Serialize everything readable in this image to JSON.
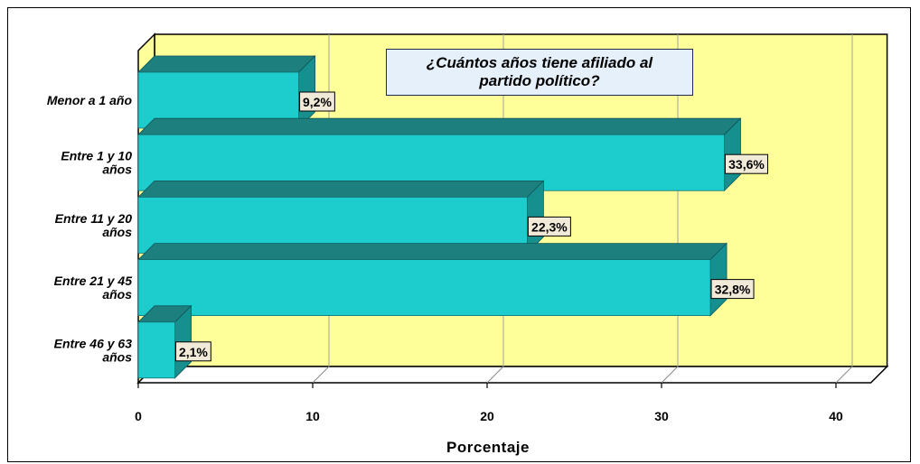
{
  "chart_data": {
    "type": "bar",
    "orientation": "horizontal",
    "title": "¿Cuántos años tiene afiliado al partido político?",
    "xlabel": "Porcentaje",
    "ylabel": "",
    "xlim": [
      0,
      42
    ],
    "x_ticks": [
      "0",
      "10",
      "20",
      "30",
      "40"
    ],
    "grid": true,
    "categories": [
      [
        "Menor a 1 año"
      ],
      [
        "Entre 1 y 10",
        "años"
      ],
      [
        "Entre 11 y 20",
        "años"
      ],
      [
        "Entre 21 y 45",
        "años"
      ],
      [
        "Entre 46 y 63",
        "años"
      ]
    ],
    "values": [
      9.2,
      33.6,
      22.3,
      32.8,
      2.1
    ],
    "value_labels": [
      "9,2%",
      "33,6%",
      "22,3%",
      "32,8%",
      "2,1%"
    ],
    "colors": {
      "bar_front": "#1dcdcd",
      "bar_top": "#1e7f7f",
      "bar_side": "#168f8f",
      "plot_background": "#ffff99",
      "floor": "#ffffff",
      "title_box": "#e6f0fb",
      "label_box": "#f2ead8"
    }
  }
}
